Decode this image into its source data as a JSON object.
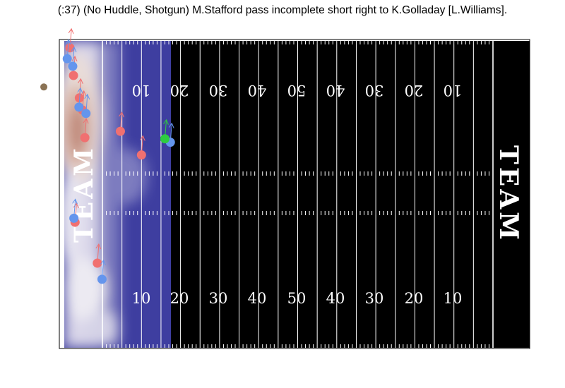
{
  "title": "(:37) (No Huddle, Shotgun) M.Stafford pass incomplete short right to K.Golladay [L.Williams].",
  "field": {
    "endzone_left_label": "TEAM",
    "endzone_right_label": "TEAM",
    "yard_numbers_bottom": [
      "10",
      "20",
      "30",
      "40",
      "50",
      "40",
      "30",
      "20",
      "10"
    ],
    "yard_numbers_top": [
      "10",
      "20",
      "30",
      "40",
      "50",
      "40",
      "30",
      "20",
      "10"
    ]
  },
  "colors": {
    "field": "#000000",
    "lines": "#ffffff",
    "offense": "#f07070",
    "defense": "#6495ed",
    "ball_carrier": "#2ecc40",
    "football": "#8b7355",
    "heat_high": "#c0897a",
    "heat_low": "#3a3a9e"
  },
  "players": {
    "offense": [
      {
        "yard": -8.3,
        "lat": 1.2
      },
      {
        "yard": -7.4,
        "lat": 6.0
      },
      {
        "yard": -5.9,
        "lat": 9.9
      },
      {
        "yard": -5.1,
        "lat": 12.0
      },
      {
        "yard": -4.5,
        "lat": 16.8
      },
      {
        "yard": 4.6,
        "lat": 15.7
      },
      {
        "yard": 10.0,
        "lat": 19.8
      },
      {
        "yard": -7.0,
        "lat": 31.5
      },
      {
        "yard": -1.3,
        "lat": 38.6
      }
    ],
    "defense": [
      {
        "yard": -9.0,
        "lat": 3.1
      },
      {
        "yard": -7.6,
        "lat": 4.4
      },
      {
        "yard": -6.0,
        "lat": 11.5
      },
      {
        "yard": -4.2,
        "lat": 12.6
      },
      {
        "yard": -7.3,
        "lat": 30.8
      },
      {
        "yard": -0.1,
        "lat": 41.4
      },
      {
        "yard": 17.4,
        "lat": 17.6
      }
    ],
    "ball_carrier": {
      "yard": 16.0,
      "lat": 17.0
    },
    "football": {
      "yard": -15.0,
      "lat": 8.0
    }
  }
}
